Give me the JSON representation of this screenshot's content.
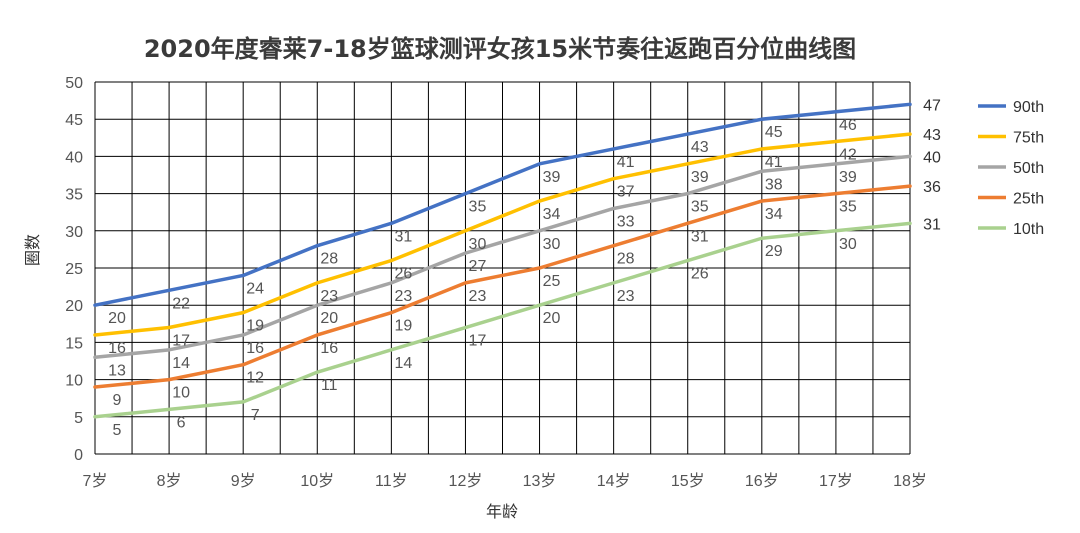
{
  "chart_data": {
    "type": "line",
    "title": "2020年度睿莱7-18岁篮球测评女孩15米节奏往返跑百分位曲线图",
    "xlabel": "年龄",
    "ylabel": "圈数",
    "categories": [
      "7岁",
      "8岁",
      "9岁",
      "10岁",
      "11岁",
      "12岁",
      "13岁",
      "14岁",
      "15岁",
      "16岁",
      "17岁",
      "18岁"
    ],
    "ylim": [
      0,
      50
    ],
    "yticks": [
      0,
      5,
      10,
      15,
      20,
      25,
      30,
      35,
      40,
      45,
      50
    ],
    "grid": true,
    "legend_position": "right",
    "series": [
      {
        "name": "90th",
        "color": "#4472C4",
        "values": [
          20,
          22,
          24,
          28,
          31,
          35,
          39,
          41,
          43,
          45,
          46,
          47
        ]
      },
      {
        "name": "75th",
        "color": "#FFC000",
        "values": [
          16,
          17,
          19,
          23,
          26,
          30,
          34,
          37,
          39,
          41,
          42,
          43
        ]
      },
      {
        "name": "50th",
        "color": "#A5A5A5",
        "values": [
          13,
          14,
          16,
          20,
          23,
          27,
          30,
          33,
          35,
          38,
          39,
          40
        ]
      },
      {
        "name": "25th",
        "color": "#ED7D31",
        "values": [
          9,
          10,
          12,
          16,
          19,
          23,
          25,
          28,
          31,
          34,
          35,
          36
        ]
      },
      {
        "name": "10th",
        "color": "#A9D18E",
        "values": [
          5,
          6,
          7,
          11,
          14,
          17,
          20,
          23,
          26,
          29,
          30,
          31
        ]
      }
    ]
  }
}
